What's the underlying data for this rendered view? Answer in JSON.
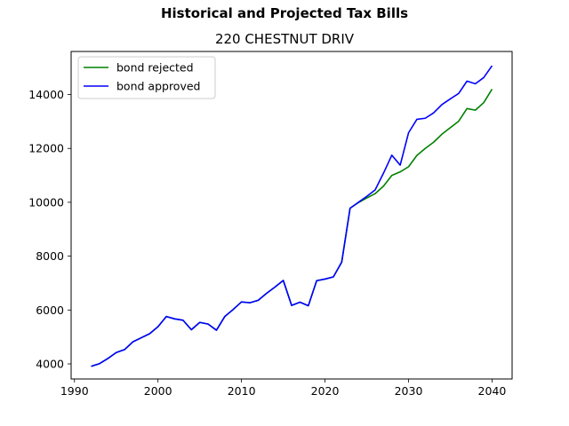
{
  "chart_data": {
    "type": "line",
    "suptitle": "Historical and Projected Tax Bills",
    "title": "220 CHESTNUT DRIV",
    "xlabel": "",
    "ylabel": "",
    "xlim": [
      1989.6,
      2042.4
    ],
    "ylim": [
      3440,
      15600
    ],
    "xticks": [
      1990,
      2000,
      2010,
      2020,
      2030,
      2040
    ],
    "yticks": [
      4000,
      6000,
      8000,
      10000,
      12000,
      14000
    ],
    "grid": false,
    "legend_position": "top-left",
    "series": [
      {
        "name": "bond rejected",
        "color": "#008000",
        "x": [
          1992,
          1993,
          1994,
          1995,
          1996,
          1997,
          1998,
          1999,
          2000,
          2001,
          2002,
          2003,
          2004,
          2005,
          2006,
          2007,
          2008,
          2009,
          2010,
          2011,
          2012,
          2013,
          2014,
          2015,
          2016,
          2017,
          2018,
          2019,
          2020,
          2021,
          2022,
          2023,
          2024,
          2025,
          2026,
          2027,
          2028,
          2029,
          2030,
          2031,
          2032,
          2033,
          2034,
          2035,
          2036,
          2037,
          2038,
          2039,
          2040
        ],
        "y": [
          3910,
          4010,
          4200,
          4420,
          4530,
          4820,
          4970,
          5120,
          5380,
          5760,
          5670,
          5620,
          5270,
          5540,
          5480,
          5250,
          5760,
          6020,
          6300,
          6270,
          6360,
          6620,
          6850,
          7100,
          6170,
          6290,
          6160,
          7090,
          7150,
          7230,
          7780,
          9780,
          9990,
          10160,
          10320,
          10600,
          11000,
          11130,
          11320,
          11740,
          12000,
          12230,
          12530,
          12770,
          13010,
          13480,
          13420,
          13700,
          14200
        ]
      },
      {
        "name": "bond approved",
        "color": "#0000ff",
        "x": [
          1992,
          1993,
          1994,
          1995,
          1996,
          1997,
          1998,
          1999,
          2000,
          2001,
          2002,
          2003,
          2004,
          2005,
          2006,
          2007,
          2008,
          2009,
          2010,
          2011,
          2012,
          2013,
          2014,
          2015,
          2016,
          2017,
          2018,
          2019,
          2020,
          2021,
          2022,
          2023,
          2024,
          2025,
          2026,
          2027,
          2028,
          2029,
          2030,
          2031,
          2032,
          2033,
          2034,
          2035,
          2036,
          2037,
          2038,
          2039,
          2040
        ],
        "y": [
          3910,
          4010,
          4200,
          4420,
          4530,
          4820,
          4970,
          5120,
          5380,
          5760,
          5670,
          5620,
          5270,
          5540,
          5480,
          5250,
          5760,
          6020,
          6300,
          6270,
          6360,
          6620,
          6850,
          7100,
          6170,
          6290,
          6160,
          7090,
          7150,
          7230,
          7780,
          9780,
          10000,
          10220,
          10460,
          11080,
          11750,
          11380,
          12580,
          13080,
          13120,
          13320,
          13630,
          13840,
          14040,
          14500,
          14400,
          14630,
          15070
        ]
      }
    ]
  }
}
